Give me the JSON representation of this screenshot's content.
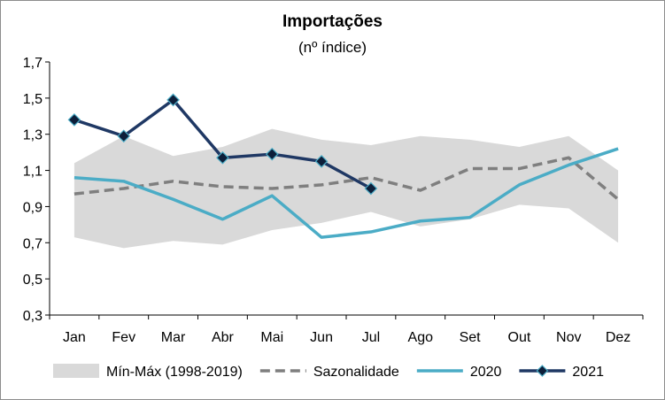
{
  "chart_data": {
    "type": "line",
    "title": "Importações",
    "subtitle": "(nº índice)",
    "categories": [
      "Jan",
      "Fev",
      "Mar",
      "Abr",
      "Mai",
      "Jun",
      "Jul",
      "Ago",
      "Set",
      "Out",
      "Nov",
      "Dez"
    ],
    "yticks": [
      "0,3",
      "0,5",
      "0,7",
      "0,9",
      "1,1",
      "1,3",
      "1,5",
      "1,7"
    ],
    "ylim": [
      0.3,
      1.7
    ],
    "grid": false,
    "legend_position": "bottom",
    "band": {
      "name": "Mín-Máx (1998-2019)",
      "color": "#d9d9d9",
      "min": [
        0.73,
        0.67,
        0.71,
        0.69,
        0.77,
        0.81,
        0.87,
        0.79,
        0.83,
        0.91,
        0.89,
        0.7
      ],
      "max": [
        1.14,
        1.29,
        1.18,
        1.23,
        1.33,
        1.27,
        1.24,
        1.29,
        1.27,
        1.23,
        1.29,
        1.1
      ]
    },
    "series": [
      {
        "name": "Sazonalidade",
        "style": "dashed",
        "color": "#7f7f7f",
        "values": [
          0.97,
          1.0,
          1.04,
          1.01,
          1.0,
          1.02,
          1.06,
          0.99,
          1.11,
          1.11,
          1.17,
          0.94
        ]
      },
      {
        "name": "2020",
        "style": "solid",
        "color": "#4bacc6",
        "values": [
          1.06,
          1.04,
          0.94,
          0.83,
          0.96,
          0.73,
          0.76,
          0.82,
          0.84,
          1.02,
          1.13,
          1.22
        ]
      },
      {
        "name": "2021",
        "style": "solid-markers",
        "color": "#1f3864",
        "marker_fill": "#0d1f3a",
        "marker_edge": "#4bacc6",
        "values": [
          1.38,
          1.29,
          1.49,
          1.17,
          1.19,
          1.15,
          1.0,
          null,
          null,
          null,
          null,
          null
        ]
      }
    ]
  }
}
